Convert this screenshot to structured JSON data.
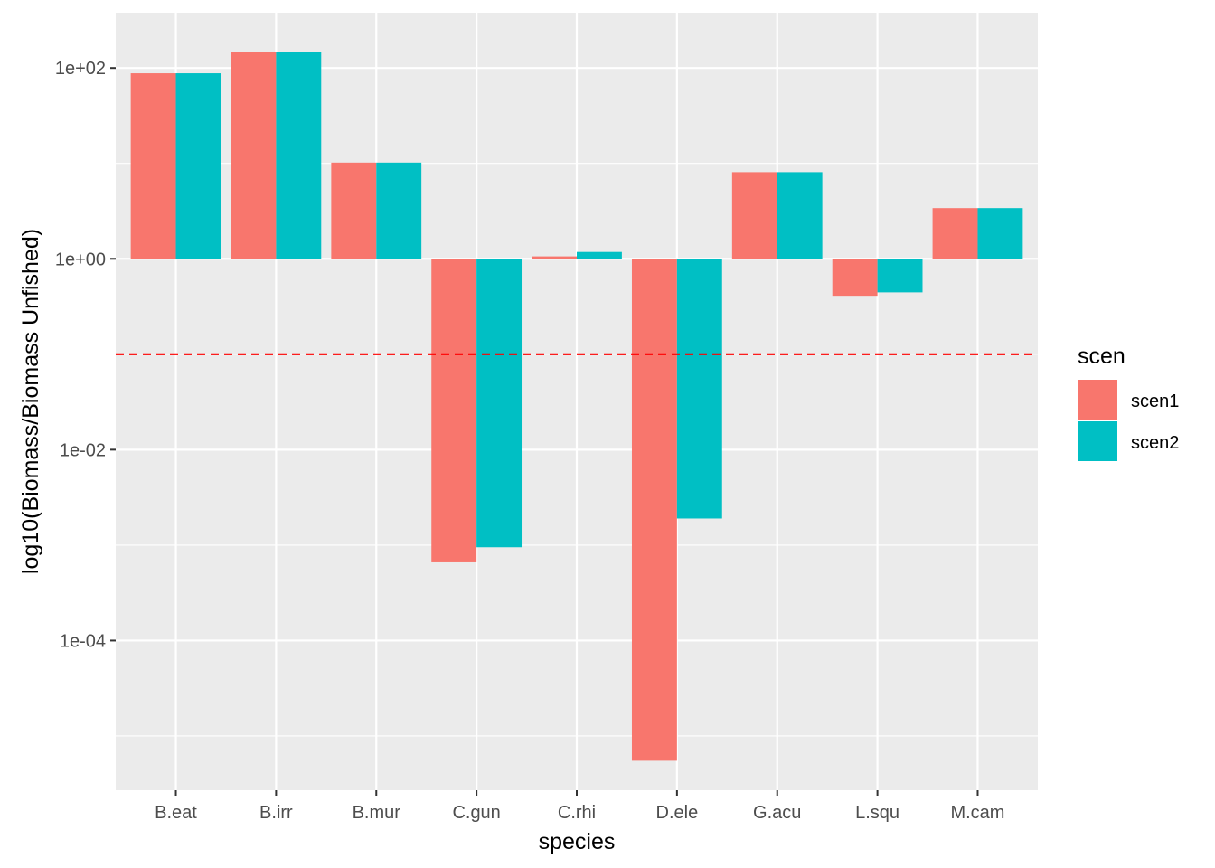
{
  "chart_data": {
    "type": "bar",
    "scale": "log10",
    "baseline": 1,
    "categories": [
      "B.eat",
      "B.irr",
      "B.mur",
      "C.gun",
      "C.rhi",
      "D.ele",
      "G.acu",
      "L.squ",
      "M.cam"
    ],
    "series": [
      {
        "name": "scen1",
        "color": "#F8766D",
        "values": [
          88,
          148,
          10.2,
          0.00066,
          1.06,
          5.5e-06,
          8.1,
          0.41,
          3.4
        ]
      },
      {
        "name": "scen2",
        "color": "#00BFC4",
        "values": [
          88,
          148,
          10.2,
          0.00095,
          1.18,
          0.0019,
          8.1,
          0.445,
          3.4
        ]
      }
    ],
    "reference_line": {
      "value": 0.1,
      "color": "#FF0000",
      "style": "dashed"
    },
    "y_ticks": [
      {
        "value": 100,
        "label": "1e+02"
      },
      {
        "value": 1,
        "label": "1e+00"
      },
      {
        "value": 0.01,
        "label": "1e-02"
      },
      {
        "value": 0.0001,
        "label": "1e-04"
      }
    ],
    "y_minor_ticks": [
      10,
      0.1,
      0.001,
      1e-05
    ],
    "ylim": [
      2.7e-06,
      380
    ],
    "xlabel": "species",
    "ylabel": "log10(Biomass/Biomass Unfished)",
    "legend": {
      "title": "scen",
      "position": "right"
    },
    "panel_background": "#EBEBEB",
    "grid": true
  }
}
